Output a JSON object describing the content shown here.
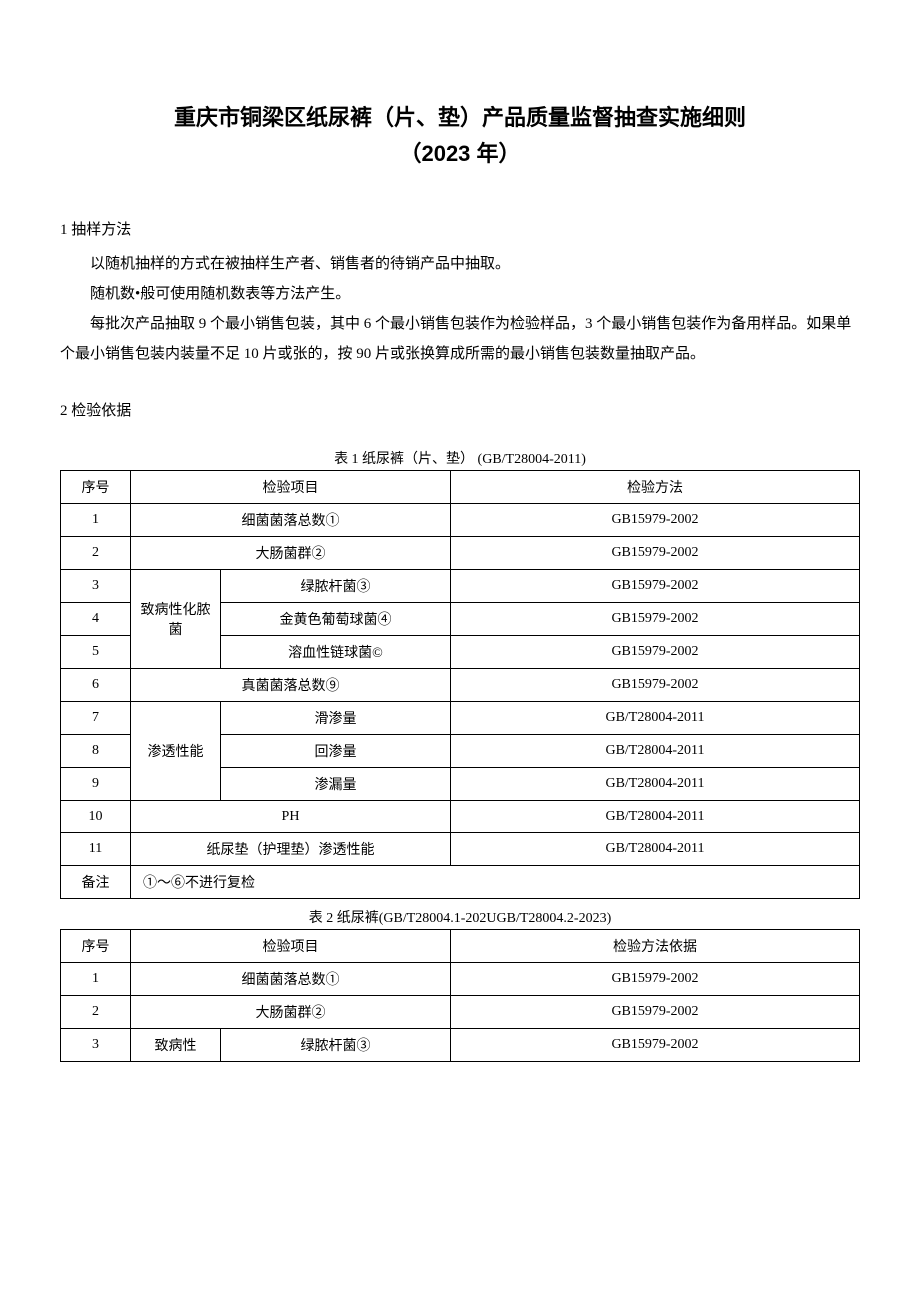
{
  "title_main": "重庆市铜梁区纸尿裤（片、垫）产品质量监督抽查实施细则",
  "title_sub": "（2023 年）",
  "section1": {
    "header": "1 抽样方法",
    "para1": "以随机抽样的方式在被抽样生产者、销售者的待销产品中抽取。",
    "para2": "随机数•般可使用随机数表等方法产生。",
    "para3": "每批次产品抽取 9 个最小销售包装，其中 6 个最小销售包装作为检验样品，3 个最小销售包装作为备用样品。如果单个最小销售包装内装量不足 10 片或张的，按 90 片或张换算成所需的最小销售包装数量抽取产品。"
  },
  "section2": {
    "header": "2 检验依据"
  },
  "table1": {
    "caption": "表 1 纸尿裤（片、垫） (GB/T28004-2011)",
    "headers": {
      "seq": "序号",
      "item": "检验项目",
      "method": "检验方法"
    },
    "rows": {
      "r1_seq": "1",
      "r1_item": "细菌菌落总数①",
      "r1_method": "GB15979-2002",
      "r2_seq": "2",
      "r2_item": "大肠菌群②",
      "r2_method": "GB15979-2002",
      "r3_seq": "3",
      "r3_group": "致病性化脓菌",
      "r3_item": "绿脓杆菌③",
      "r3_method": "GB15979-2002",
      "r4_seq": "4",
      "r4_item": "金黄色葡萄球菌④",
      "r4_method": "GB15979-2002",
      "r5_seq": "5",
      "r5_item": "溶血性链球菌©",
      "r5_method": "GB15979-2002",
      "r6_seq": "6",
      "r6_item": "真菌菌落总数⑨",
      "r6_method": "GB15979-2002",
      "r7_seq": "7",
      "r7_group": "渗透性能",
      "r7_item": "滑渗量",
      "r7_method": "GB/T28004-2011",
      "r8_seq": "8",
      "r8_item": "回渗量",
      "r8_method": "GB/T28004-2011",
      "r9_seq": "9",
      "r9_item": "渗漏量",
      "r9_method": "GB/T28004-2011",
      "r10_seq": "10",
      "r10_item": "PH",
      "r10_method": "GB/T28004-2011",
      "r11_seq": "11",
      "r11_item": "纸尿垫（护理垫）渗透性能",
      "r11_method": "GB/T28004-2011",
      "remark_label": "备注",
      "remark_text": "①〜⑥不进行复检"
    }
  },
  "table2": {
    "caption": "表 2 纸尿裤(GB/T28004.1-202UGB/T28004.2-2023)",
    "headers": {
      "seq": "序号",
      "item": "检验项目",
      "method": "检验方法依据"
    },
    "rows": {
      "r1_seq": "1",
      "r1_item": "细菌菌落总数①",
      "r1_method": "GB15979-2002",
      "r2_seq": "2",
      "r2_item": "大肠菌群②",
      "r2_method": "GB15979-2002",
      "r3_seq": "3",
      "r3_group": "致病性",
      "r3_item": "绿脓杆菌③",
      "r3_method": "GB15979-2002"
    }
  },
  "style": {
    "background": "#ffffff",
    "text_color": "#000000",
    "border_color": "#000000",
    "title_fontsize": 22,
    "body_fontsize": 15,
    "table_fontsize": 14
  }
}
